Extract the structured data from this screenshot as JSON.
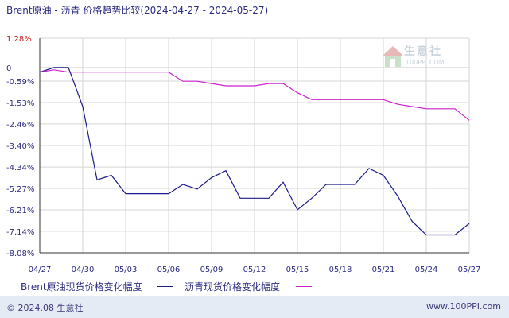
{
  "title": "Brent原油 - 沥青 价格趋势比较(2024-04-27 - 2024-05-27)",
  "watermark": {
    "name": "生意社",
    "url": "100PPI.COM"
  },
  "footer": {
    "copyright": "© 2024.08 生意社",
    "site": "www.100PPI.com"
  },
  "colors": {
    "grid": "#d5d5d5",
    "axis": "#333333",
    "tick_text": "#2b2b80",
    "first_tick": "#c01818",
    "footer_bg": "#e4ebf4"
  },
  "chart_data": {
    "type": "line",
    "title": "Brent原油 - 沥青 价格趋势比较(2024-04-27 - 2024-05-27)",
    "ylim": [
      -8.08,
      1.28
    ],
    "ytick_labels": [
      "1.28%",
      "0",
      "-0.59%",
      "-1.53%",
      "-2.46%",
      "-3.40%",
      "-4.34%",
      "-5.27%",
      "-6.21%",
      "-7.14%",
      "-8.08%"
    ],
    "yticks": [
      1.28,
      0,
      -0.59,
      -1.53,
      -2.46,
      -3.4,
      -4.34,
      -5.27,
      -6.21,
      -7.14,
      -8.08
    ],
    "xtick_labels": [
      "04/27",
      "04/30",
      "05/03",
      "05/06",
      "05/09",
      "05/12",
      "05/15",
      "05/18",
      "05/21",
      "05/24",
      "05/27"
    ],
    "x": [
      "04/27",
      "04/28",
      "04/29",
      "04/30",
      "05/01",
      "05/02",
      "05/03",
      "05/04",
      "05/05",
      "05/06",
      "05/07",
      "05/08",
      "05/09",
      "05/10",
      "05/11",
      "05/12",
      "05/13",
      "05/14",
      "05/15",
      "05/16",
      "05/17",
      "05/18",
      "05/19",
      "05/20",
      "05/21",
      "05/22",
      "05/23",
      "05/24",
      "05/25",
      "05/26",
      "05/27"
    ],
    "grid": true,
    "legend_position": "bottom",
    "series": [
      {
        "name": "Brent原油现货价格变化幅度",
        "color": "#1c1c8c",
        "values": [
          -0.2,
          0.0,
          0.0,
          -1.7,
          -4.9,
          -4.7,
          -5.5,
          -5.5,
          -5.5,
          -5.5,
          -5.1,
          -5.3,
          -4.8,
          -4.5,
          -5.7,
          -5.7,
          -5.7,
          -5.0,
          -6.2,
          -5.7,
          -5.1,
          -5.1,
          -5.1,
          -4.4,
          -4.7,
          -5.6,
          -6.7,
          -7.3,
          -7.3,
          -7.3,
          -6.8
        ]
      },
      {
        "name": "沥青现货价格变化幅度",
        "color": "#cc22cc",
        "values": [
          -0.2,
          -0.1,
          -0.2,
          -0.2,
          -0.2,
          -0.2,
          -0.2,
          -0.2,
          -0.2,
          -0.2,
          -0.6,
          -0.6,
          -0.7,
          -0.8,
          -0.8,
          -0.8,
          -0.7,
          -0.7,
          -1.1,
          -1.4,
          -1.4,
          -1.4,
          -1.4,
          -1.4,
          -1.4,
          -1.6,
          -1.7,
          -1.8,
          -1.8,
          -1.8,
          -2.3
        ]
      }
    ]
  }
}
